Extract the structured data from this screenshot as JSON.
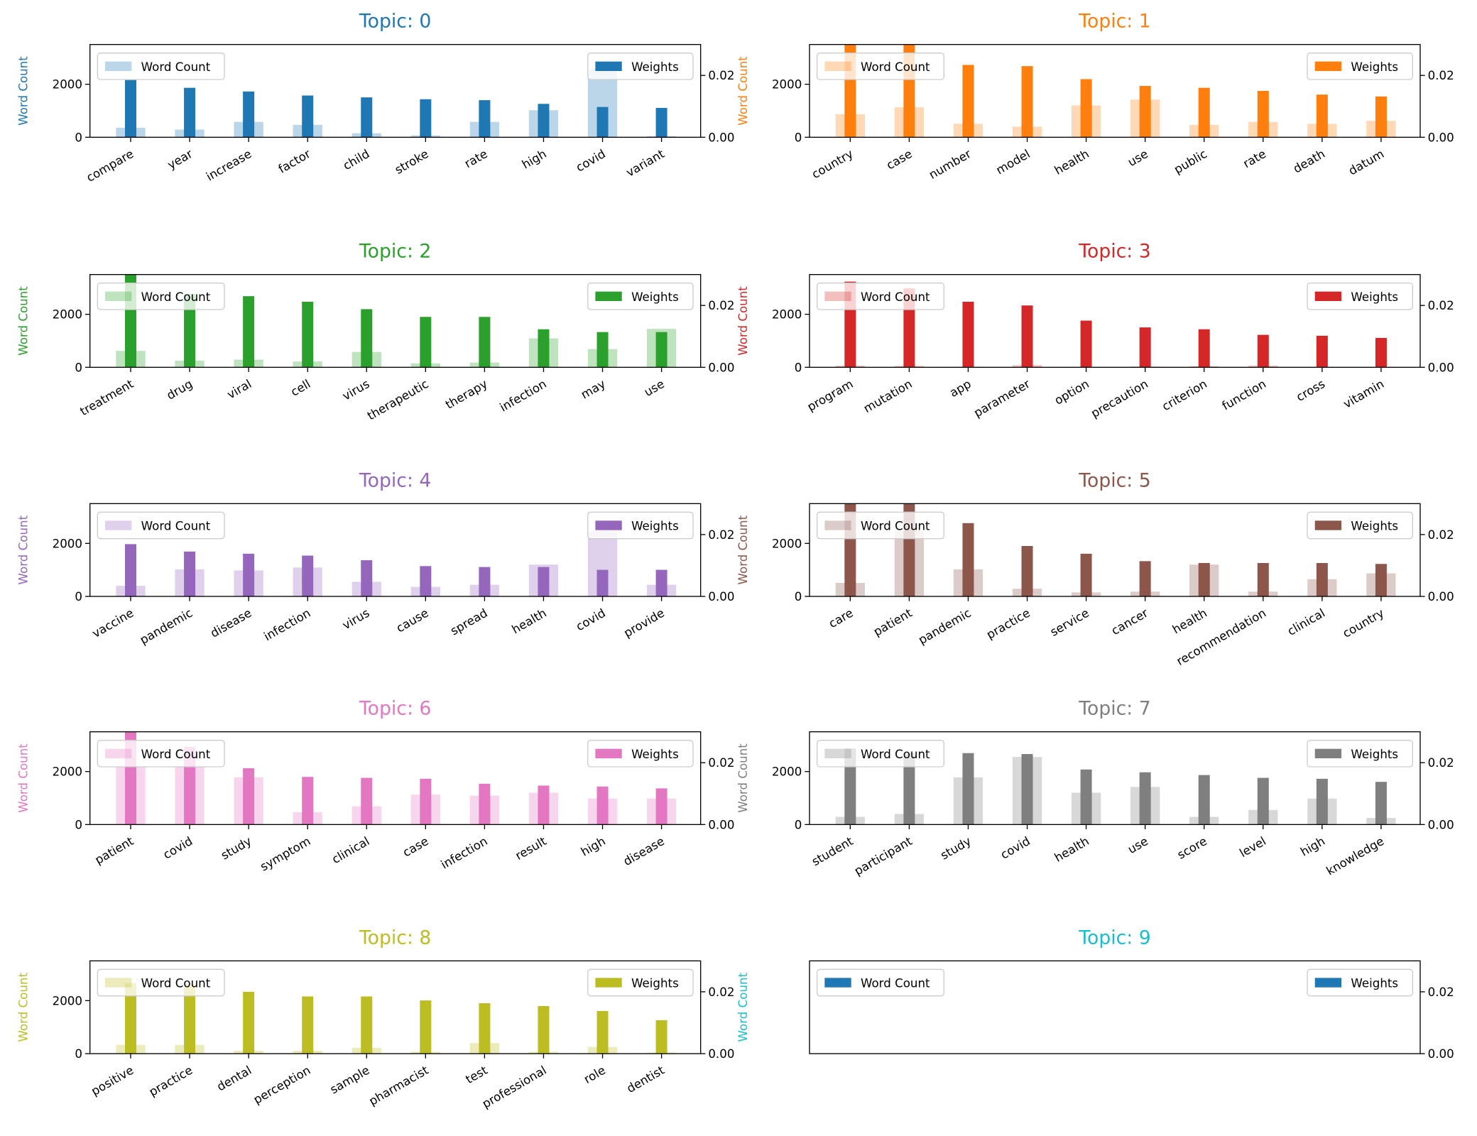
{
  "chart_data": [
    {
      "type": "bar",
      "title": "Topic: 0",
      "title_color": "#1f77b4",
      "ylabel": "Word Count",
      "categories": [
        "compare",
        "year",
        "increase",
        "factor",
        "child",
        "stroke",
        "rate",
        "high",
        "covid",
        "variant"
      ],
      "series": [
        {
          "name": "Word Count",
          "color": "#1f77b4",
          "opacity": 0.3,
          "axis": "y",
          "values": [
            360,
            290,
            580,
            470,
            150,
            70,
            580,
            1020,
            2550,
            40
          ]
        },
        {
          "name": "Weights",
          "color": "#1f77b4",
          "opacity": 1,
          "axis": "y2",
          "values": [
            0.0185,
            0.016,
            0.0148,
            0.0135,
            0.0129,
            0.0123,
            0.012,
            0.0108,
            0.0098,
            0.0095
          ]
        }
      ],
      "ylim": [
        0,
        3500
      ],
      "yticks": [
        0,
        2000
      ],
      "y2lim": [
        0,
        0.03
      ],
      "y2ticks": [
        {
          "value": 0,
          "label": "0.00"
        },
        {
          "value": 0.02,
          "label": "0.02"
        }
      ]
    },
    {
      "type": "bar",
      "title": "Topic: 1",
      "title_color": "#ff7f0e",
      "ylabel": "Word Count",
      "categories": [
        "country",
        "case",
        "number",
        "model",
        "health",
        "use",
        "public",
        "rate",
        "death",
        "datum"
      ],
      "series": [
        {
          "name": "Word Count",
          "color": "#ff7f0e",
          "opacity": 0.3,
          "axis": "y",
          "values": [
            870,
            1130,
            510,
            400,
            1200,
            1420,
            470,
            580,
            510,
            620
          ]
        },
        {
          "name": "Weights",
          "color": "#ff7f0e",
          "opacity": 1,
          "axis": "y2",
          "values": [
            0.031,
            0.03,
            0.0234,
            0.023,
            0.0188,
            0.0166,
            0.016,
            0.015,
            0.0138,
            0.0132
          ]
        }
      ],
      "ylim": [
        0,
        3500
      ],
      "yticks": [
        0,
        2000
      ],
      "y2lim": [
        0,
        0.03
      ],
      "y2ticks": [
        {
          "value": 0,
          "label": "0.00"
        },
        {
          "value": 0.02,
          "label": "0.02"
        }
      ]
    },
    {
      "type": "bar",
      "title": "Topic: 2",
      "title_color": "#2ca02c",
      "ylabel": "Word Count",
      "categories": [
        "treatment",
        "drug",
        "viral",
        "cell",
        "virus",
        "therapeutic",
        "therapy",
        "infection",
        "may",
        "use"
      ],
      "series": [
        {
          "name": "Word Count",
          "color": "#2ca02c",
          "opacity": 0.3,
          "axis": "y",
          "values": [
            620,
            250,
            290,
            220,
            580,
            150,
            180,
            1090,
            690,
            1450
          ]
        },
        {
          "name": "Weights",
          "color": "#2ca02c",
          "opacity": 1,
          "axis": "y2",
          "values": [
            0.031,
            0.0237,
            0.023,
            0.0212,
            0.0188,
            0.0163,
            0.0163,
            0.0123,
            0.0114,
            0.0114
          ]
        }
      ],
      "ylim": [
        0,
        3500
      ],
      "yticks": [
        0,
        2000
      ],
      "y2lim": [
        0,
        0.03
      ],
      "y2ticks": [
        {
          "value": 0,
          "label": "0.00"
        },
        {
          "value": 0.02,
          "label": "0.02"
        }
      ]
    },
    {
      "type": "bar",
      "title": "Topic: 3",
      "title_color": "#d62728",
      "ylabel": "Word Count",
      "categories": [
        "program",
        "mutation",
        "app",
        "parameter",
        "option",
        "precaution",
        "criterion",
        "function",
        "cross",
        "vitamin"
      ],
      "series": [
        {
          "name": "Word Count",
          "color": "#d62728",
          "opacity": 0.3,
          "axis": "y",
          "values": [
            60,
            50,
            20,
            80,
            10,
            30,
            40,
            60,
            10,
            10
          ]
        },
        {
          "name": "Weights",
          "color": "#d62728",
          "opacity": 1,
          "axis": "y2",
          "values": [
            0.0277,
            0.0255,
            0.0212,
            0.02,
            0.0151,
            0.0129,
            0.0123,
            0.0105,
            0.0102,
            0.0095
          ]
        }
      ],
      "ylim": [
        0,
        3500
      ],
      "yticks": [
        0,
        2000
      ],
      "y2lim": [
        0,
        0.03
      ],
      "y2ticks": [
        {
          "value": 0,
          "label": "0.00"
        },
        {
          "value": 0.02,
          "label": "0.02"
        }
      ]
    },
    {
      "type": "bar",
      "title": "Topic: 4",
      "title_color": "#9467bd",
      "ylabel": "Word Count",
      "categories": [
        "vaccine",
        "pandemic",
        "disease",
        "infection",
        "virus",
        "cause",
        "spread",
        "health",
        "covid",
        "provide"
      ],
      "series": [
        {
          "name": "Word Count",
          "color": "#9467bd",
          "opacity": 0.3,
          "axis": "y",
          "values": [
            400,
            1020,
            980,
            1090,
            550,
            360,
            440,
            1200,
            2470,
            440
          ]
        },
        {
          "name": "Weights",
          "color": "#9467bd",
          "opacity": 1,
          "axis": "y2",
          "values": [
            0.0169,
            0.0145,
            0.0138,
            0.0132,
            0.0117,
            0.0098,
            0.0095,
            0.0095,
            0.0086,
            0.0086
          ]
        }
      ],
      "ylim": [
        0,
        3500
      ],
      "yticks": [
        0,
        2000
      ],
      "y2lim": [
        0,
        0.03
      ],
      "y2ticks": [
        {
          "value": 0,
          "label": "0.00"
        },
        {
          "value": 0.02,
          "label": "0.02"
        }
      ]
    },
    {
      "type": "bar",
      "title": "Topic: 5",
      "title_color": "#8c564b",
      "ylabel": "Word Count",
      "categories": [
        "care",
        "patient",
        "pandemic",
        "practice",
        "service",
        "cancer",
        "health",
        "recommendation",
        "clinical",
        "country"
      ],
      "series": [
        {
          "name": "Word Count",
          "color": "#8c564b",
          "opacity": 0.3,
          "axis": "y",
          "values": [
            510,
            2470,
            1020,
            290,
            150,
            180,
            1200,
            180,
            650,
            870
          ]
        },
        {
          "name": "Weights",
          "color": "#8c564b",
          "opacity": 1,
          "axis": "y2",
          "values": [
            0.031,
            0.031,
            0.0237,
            0.0163,
            0.0138,
            0.0114,
            0.0108,
            0.0108,
            0.0108,
            0.0105
          ]
        }
      ],
      "ylim": [
        0,
        3500
      ],
      "yticks": [
        0,
        2000
      ],
      "y2lim": [
        0,
        0.03
      ],
      "y2ticks": [
        {
          "value": 0,
          "label": "0.00"
        },
        {
          "value": 0.02,
          "label": "0.02"
        }
      ]
    },
    {
      "type": "bar",
      "title": "Topic: 6",
      "title_color": "#e377c2",
      "ylabel": "Word Count",
      "categories": [
        "patient",
        "covid",
        "study",
        "symptom",
        "clinical",
        "case",
        "infection",
        "result",
        "high",
        "disease"
      ],
      "series": [
        {
          "name": "Word Count",
          "color": "#e377c2",
          "opacity": 0.3,
          "axis": "y",
          "values": [
            2180,
            2180,
            1780,
            470,
            690,
            1130,
            1090,
            1200,
            980,
            980
          ]
        },
        {
          "name": "Weights",
          "color": "#e377c2",
          "opacity": 1,
          "axis": "y2",
          "values": [
            0.031,
            0.0252,
            0.0182,
            0.0154,
            0.0151,
            0.0148,
            0.0132,
            0.0126,
            0.0123,
            0.0117
          ]
        }
      ],
      "ylim": [
        0,
        3500
      ],
      "yticks": [
        0,
        2000
      ],
      "y2lim": [
        0,
        0.03
      ],
      "y2ticks": [
        {
          "value": 0,
          "label": "0.00"
        },
        {
          "value": 0.02,
          "label": "0.02"
        }
      ]
    },
    {
      "type": "bar",
      "title": "Topic: 7",
      "title_color": "#7f7f7f",
      "ylabel": "Word Count",
      "categories": [
        "student",
        "participant",
        "study",
        "covid",
        "health",
        "use",
        "score",
        "level",
        "high",
        "knowledge"
      ],
      "series": [
        {
          "name": "Word Count",
          "color": "#7f7f7f",
          "opacity": 0.3,
          "axis": "y",
          "values": [
            290,
            400,
            1780,
            2550,
            1200,
            1420,
            290,
            550,
            980,
            250
          ]
        },
        {
          "name": "Weights",
          "color": "#7f7f7f",
          "opacity": 1,
          "axis": "y2",
          "values": [
            0.0246,
            0.0231,
            0.0231,
            0.0228,
            0.0178,
            0.0169,
            0.016,
            0.0151,
            0.0148,
            0.0138
          ]
        }
      ],
      "ylim": [
        0,
        3500
      ],
      "yticks": [
        0,
        2000
      ],
      "y2lim": [
        0,
        0.03
      ],
      "y2ticks": [
        {
          "value": 0,
          "label": "0.00"
        },
        {
          "value": 0.02,
          "label": "0.02"
        }
      ]
    },
    {
      "type": "bar",
      "title": "Topic: 8",
      "title_color": "#bcbd22",
      "ylabel": "Word Count",
      "categories": [
        "positive",
        "practice",
        "dental",
        "perception",
        "sample",
        "pharmacist",
        "test",
        "professional",
        "role",
        "dentist"
      ],
      "series": [
        {
          "name": "Word Count",
          "color": "#bcbd22",
          "opacity": 0.3,
          "axis": "y",
          "values": [
            330,
            330,
            110,
            110,
            220,
            70,
            400,
            70,
            250,
            40
          ]
        },
        {
          "name": "Weights",
          "color": "#bcbd22",
          "opacity": 1,
          "axis": "y2",
          "values": [
            0.0228,
            0.0225,
            0.02,
            0.0185,
            0.0185,
            0.0172,
            0.0163,
            0.0154,
            0.0138,
            0.0108
          ]
        }
      ],
      "ylim": [
        0,
        3500
      ],
      "yticks": [
        0,
        2000
      ],
      "y2lim": [
        0,
        0.03
      ],
      "y2ticks": [
        {
          "value": 0,
          "label": "0.00"
        },
        {
          "value": 0.02,
          "label": "0.02"
        }
      ]
    },
    {
      "type": "bar",
      "title": "Topic: 9",
      "title_color": "#17becf",
      "ylabel": "Word Count",
      "categories": [],
      "series": [
        {
          "name": "Word Count",
          "color": "#1f77b4",
          "opacity": 1,
          "axis": "y",
          "values": []
        },
        {
          "name": "Weights",
          "color": "#1f77b4",
          "opacity": 1,
          "axis": "y2",
          "values": []
        }
      ],
      "y2lim": [
        0,
        0.03
      ],
      "y2ticks": [
        {
          "value": 0,
          "label": "0.00"
        },
        {
          "value": 0.02,
          "label": "0.02"
        }
      ]
    }
  ]
}
